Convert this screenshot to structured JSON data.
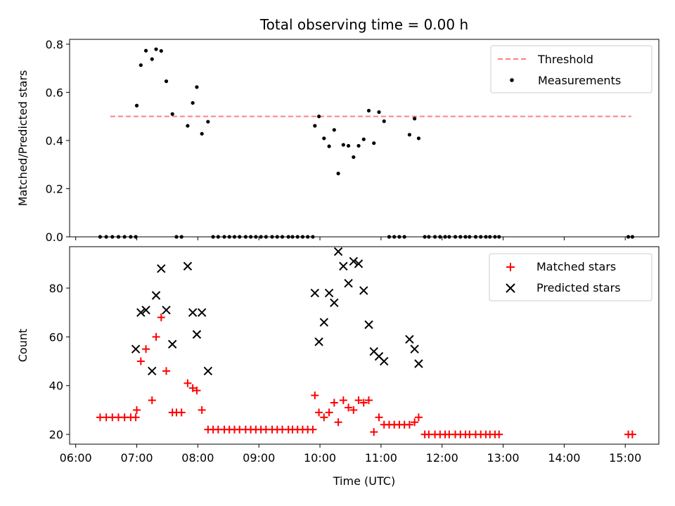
{
  "chart_data": [
    {
      "type": "scatter",
      "title": "Total observing time = 0.00 h",
      "xlabel": "",
      "ylabel": "Matched/Predicted stars",
      "xlim_hours": [
        5.9,
        15.55
      ],
      "ylim": [
        0,
        0.82
      ],
      "yticks": [
        "0.0",
        "0.2",
        "0.4",
        "0.6",
        "0.8"
      ],
      "legend_position": "upper-right",
      "threshold": {
        "name": "Threshold",
        "value": 0.5,
        "x_range": [
          "06:34",
          "15:06"
        ],
        "color": "#ff8080"
      },
      "series": [
        {
          "name": "Measurements",
          "marker": "dot",
          "color": "#000000",
          "x": [
            "06:24",
            "06:30",
            "06:36",
            "06:42",
            "06:48",
            "06:54",
            "06:59",
            "07:00",
            "07:04",
            "07:09",
            "07:15",
            "07:19",
            "07:24",
            "07:29",
            "07:35",
            "07:39",
            "07:44",
            "07:50",
            "07:55",
            "07:59",
            "08:04",
            "08:10",
            "08:15",
            "08:20",
            "08:26",
            "08:31",
            "08:36",
            "08:41",
            "08:47",
            "08:52",
            "08:57",
            "09:02",
            "09:07",
            "09:13",
            "09:18",
            "09:23",
            "09:29",
            "09:33",
            "09:38",
            "09:43",
            "09:48",
            "09:53",
            "09:55",
            "09:59",
            "10:04",
            "10:09",
            "10:14",
            "10:18",
            "10:23",
            "10:28",
            "10:33",
            "10:38",
            "10:43",
            "10:48",
            "10:53",
            "10:58",
            "11:03",
            "11:08",
            "11:13",
            "11:18",
            "11:23",
            "11:28",
            "11:33",
            "11:37",
            "11:43",
            "11:47",
            "11:53",
            "11:58",
            "12:03",
            "12:07",
            "12:13",
            "12:18",
            "12:23",
            "12:27",
            "12:33",
            "12:38",
            "12:43",
            "12:47",
            "12:52",
            "12:56",
            "15:03",
            "15:07"
          ],
          "y": [
            0,
            0,
            0,
            0,
            0,
            0,
            0,
            0.545,
            0.713,
            0.773,
            0.738,
            0.779,
            0.772,
            0.646,
            0.51,
            0,
            0,
            0.461,
            0.556,
            0.622,
            0.428,
            0.478,
            0,
            0,
            0,
            0,
            0,
            0,
            0,
            0,
            0,
            0,
            0,
            0,
            0,
            0,
            0,
            0,
            0,
            0,
            0,
            0,
            0.461,
            0.5,
            0.409,
            0.376,
            0.444,
            0.263,
            0.382,
            0.378,
            0.331,
            0.378,
            0.405,
            0.524,
            0.389,
            0.518,
            0.48,
            0,
            0,
            0,
            0,
            0.424,
            0.491,
            0.409,
            0,
            0,
            0,
            0,
            0,
            0,
            0,
            0,
            0,
            0,
            0,
            0,
            0,
            0,
            0,
            0,
            0,
            0
          ]
        }
      ]
    },
    {
      "type": "scatter",
      "title": "",
      "xlabel": "Time (UTC)",
      "ylabel": "Count",
      "xlim_hours": [
        5.9,
        15.55
      ],
      "ylim": [
        16,
        97
      ],
      "yticks": [
        "20",
        "40",
        "60",
        "80"
      ],
      "xticks": [
        "06:00",
        "07:00",
        "08:00",
        "09:00",
        "10:00",
        "11:00",
        "12:00",
        "13:00",
        "14:00",
        "15:00"
      ],
      "legend_position": "upper-right",
      "series": [
        {
          "name": "Matched stars",
          "marker": "plus",
          "color": "#ff0000",
          "x": [
            "06:24",
            "06:30",
            "06:36",
            "06:42",
            "06:48",
            "06:54",
            "06:59",
            "07:00",
            "07:04",
            "07:09",
            "07:15",
            "07:19",
            "07:24",
            "07:29",
            "07:35",
            "07:39",
            "07:44",
            "07:50",
            "07:55",
            "07:59",
            "08:04",
            "08:10",
            "08:15",
            "08:20",
            "08:26",
            "08:31",
            "08:36",
            "08:41",
            "08:47",
            "08:52",
            "08:57",
            "09:02",
            "09:07",
            "09:13",
            "09:18",
            "09:23",
            "09:29",
            "09:33",
            "09:38",
            "09:43",
            "09:48",
            "09:53",
            "09:55",
            "09:59",
            "10:04",
            "10:09",
            "10:14",
            "10:18",
            "10:23",
            "10:28",
            "10:33",
            "10:38",
            "10:43",
            "10:48",
            "10:53",
            "10:58",
            "11:03",
            "11:08",
            "11:13",
            "11:18",
            "11:23",
            "11:28",
            "11:33",
            "11:37",
            "11:43",
            "11:47",
            "11:53",
            "11:58",
            "12:03",
            "12:07",
            "12:13",
            "12:18",
            "12:23",
            "12:27",
            "12:33",
            "12:38",
            "12:43",
            "12:47",
            "12:52",
            "12:56",
            "15:03",
            "15:07"
          ],
          "y": [
            27,
            27,
            27,
            27,
            27,
            27,
            27,
            30,
            50,
            55,
            34,
            60,
            68,
            46,
            29,
            29,
            29,
            41,
            39,
            38,
            30,
            22,
            22,
            22,
            22,
            22,
            22,
            22,
            22,
            22,
            22,
            22,
            22,
            22,
            22,
            22,
            22,
            22,
            22,
            22,
            22,
            22,
            36,
            29,
            27,
            29,
            33,
            25,
            34,
            31,
            30,
            34,
            33,
            34,
            21,
            27,
            24,
            24,
            24,
            24,
            24,
            24,
            25,
            27,
            20,
            20,
            20,
            20,
            20,
            20,
            20,
            20,
            20,
            20,
            20,
            20,
            20,
            20,
            20,
            20,
            20,
            20
          ]
        },
        {
          "name": "Predicted stars",
          "marker": "x",
          "color": "#000000",
          "x": [
            "06:59",
            "07:04",
            "07:09",
            "07:15",
            "07:19",
            "07:24",
            "07:29",
            "07:35",
            "07:50",
            "07:55",
            "07:59",
            "08:04",
            "08:10",
            "09:55",
            "09:59",
            "10:04",
            "10:09",
            "10:14",
            "10:18",
            "10:23",
            "10:28",
            "10:33",
            "10:38",
            "10:43",
            "10:48",
            "10:53",
            "10:58",
            "11:03",
            "11:28",
            "11:33",
            "11:37"
          ],
          "y": [
            55,
            70,
            71,
            46,
            77,
            88,
            71,
            57,
            89,
            70,
            61,
            70,
            46,
            78,
            58,
            66,
            78,
            74,
            95,
            89,
            82,
            91,
            90,
            79,
            65,
            54,
            52,
            50,
            59,
            55,
            49
          ]
        }
      ]
    }
  ]
}
